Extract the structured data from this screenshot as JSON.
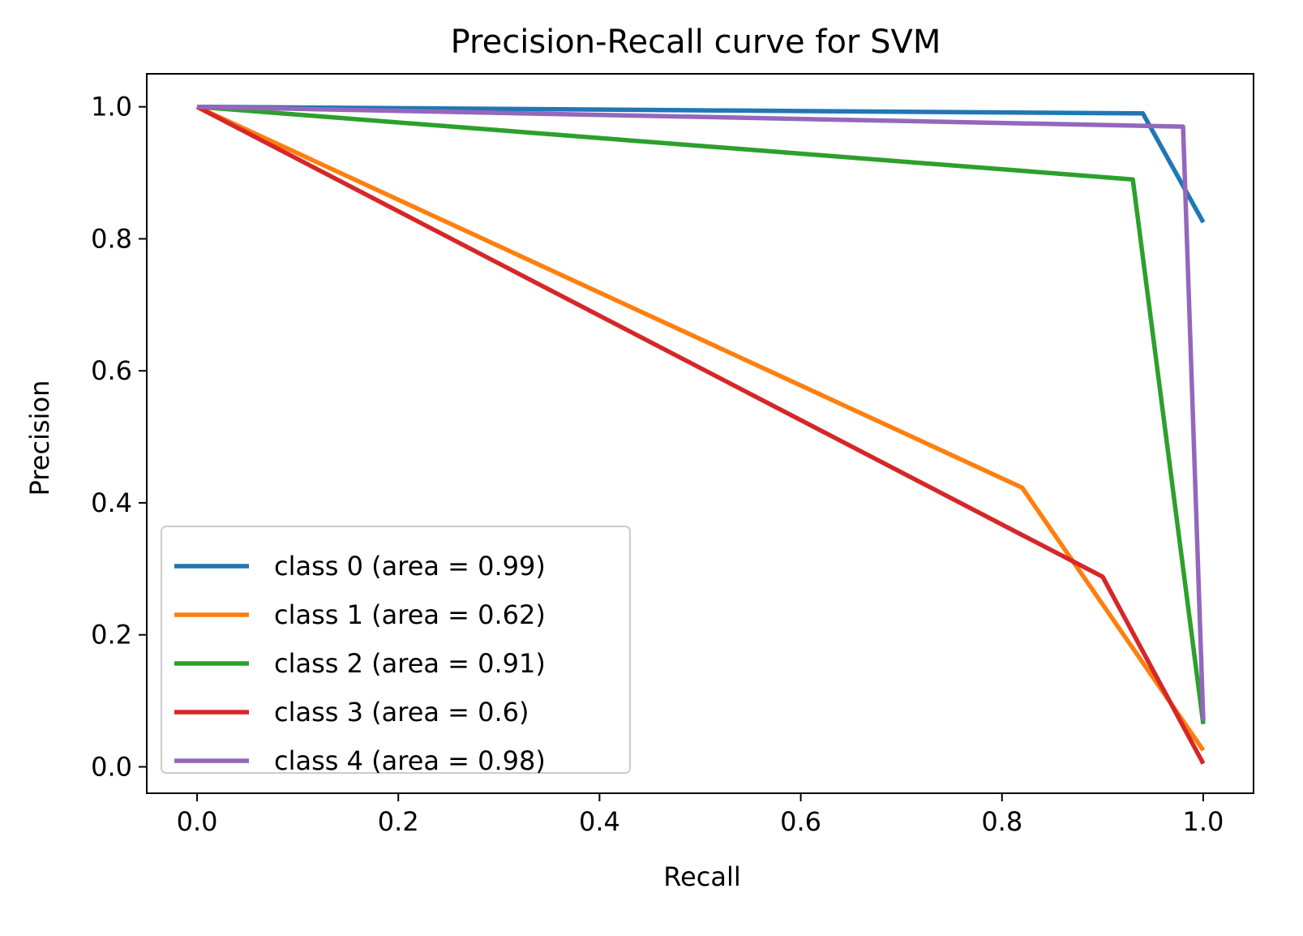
{
  "chart_data": {
    "type": "line",
    "title": "Precision-Recall curve for SVM",
    "xlabel": "Recall",
    "ylabel": "Precision",
    "xlim": [
      -0.05,
      1.05
    ],
    "ylim": [
      -0.04,
      1.05
    ],
    "xticks": [
      0.0,
      0.2,
      0.4,
      0.6,
      0.8,
      1.0
    ],
    "xtick_labels": [
      "0.0",
      "0.2",
      "0.4",
      "0.6",
      "0.8",
      "1.0"
    ],
    "yticks": [
      0.0,
      0.2,
      0.4,
      0.6,
      0.8,
      1.0
    ],
    "ytick_labels": [
      "0.0",
      "0.2",
      "0.4",
      "0.6",
      "0.8",
      "1.0"
    ],
    "grid": false,
    "legend_position": "lower-left",
    "series": [
      {
        "name": "class 0 (area = 0.99)",
        "color": "#1f77b4",
        "x": [
          0.0,
          0.94,
          1.0
        ],
        "y": [
          1.0,
          0.99,
          0.825
        ]
      },
      {
        "name": "class 1 (area = 0.62)",
        "color": "#ff7f0e",
        "x": [
          0.0,
          0.82,
          1.0
        ],
        "y": [
          1.0,
          0.423,
          0.025
        ]
      },
      {
        "name": "class 2 (area = 0.91)",
        "color": "#2ca02c",
        "x": [
          0.0,
          0.93,
          1.0
        ],
        "y": [
          1.0,
          0.89,
          0.065
        ]
      },
      {
        "name": "class 3 (area = 0.6)",
        "color": "#d62728",
        "x": [
          0.0,
          0.9,
          1.0
        ],
        "y": [
          1.0,
          0.288,
          0.005
        ]
      },
      {
        "name": "class 4 (area = 0.98)",
        "color": "#9467bd",
        "x": [
          0.0,
          0.98,
          1.0
        ],
        "y": [
          1.0,
          0.97,
          0.07
        ]
      }
    ]
  }
}
